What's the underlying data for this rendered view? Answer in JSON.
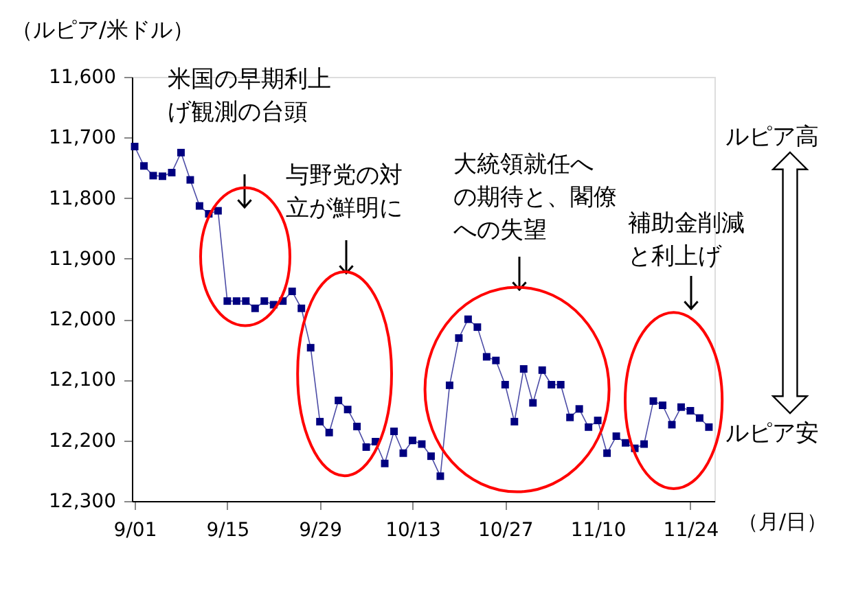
{
  "chart_data": {
    "type": "line",
    "ylabel": "（ルピア/米ドル）",
    "xlabel": "（月/日）",
    "categories": [
      "9/01",
      null,
      null,
      null,
      null,
      null,
      null,
      null,
      null,
      null,
      "9/15",
      null,
      null,
      null,
      null,
      null,
      null,
      null,
      null,
      null,
      "9/29",
      null,
      null,
      null,
      null,
      null,
      null,
      null,
      null,
      null,
      "10/13",
      null,
      null,
      null,
      null,
      null,
      null,
      null,
      null,
      null,
      "10/27",
      null,
      null,
      null,
      null,
      null,
      null,
      null,
      null,
      null,
      "11/10",
      null,
      null,
      null,
      null,
      null,
      null,
      null,
      null,
      null,
      "11/24",
      null,
      null
    ],
    "values": [
      11715,
      11747,
      11763,
      11764,
      11758,
      11725,
      11770,
      11813,
      11826,
      11821,
      11970,
      11970,
      11970,
      11982,
      11970,
      11976,
      11970,
      11954,
      11982,
      12047,
      12169,
      12187,
      12134,
      12149,
      12177,
      12211,
      12202,
      12238,
      12185,
      12221,
      12200,
      12206,
      12226,
      12259,
      12109,
      12031,
      12000,
      12013,
      12062,
      12068,
      12108,
      12169,
      12082,
      12138,
      12084,
      12108,
      12108,
      12162,
      12148,
      12178,
      12167,
      12221,
      12193,
      12204,
      12213,
      12206,
      12135,
      12142,
      12174,
      12145,
      12151,
      12163,
      12178
    ],
    "color": "#000080",
    "marker": "square",
    "line_style": "solid",
    "ylim": [
      12300,
      11600
    ],
    "yticks": [
      {
        "value": 11600,
        "label": "11,600"
      },
      {
        "value": 11700,
        "label": "11,700"
      },
      {
        "value": 11800,
        "label": "11,800"
      },
      {
        "value": 11900,
        "label": "11,900"
      },
      {
        "value": 12000,
        "label": "12,000"
      },
      {
        "value": 12100,
        "label": "12,100"
      },
      {
        "value": 12200,
        "label": "12,200"
      },
      {
        "value": 12300,
        "label": "12,300"
      }
    ],
    "annotations": [
      "米国の早期利上げ観測の台頭",
      "与野党の対立が鮮明に",
      "大統領就任への期待と、閣僚への失望",
      "補助金削減と利上げ",
      "ルピア高",
      "ルピア安"
    ]
  }
}
